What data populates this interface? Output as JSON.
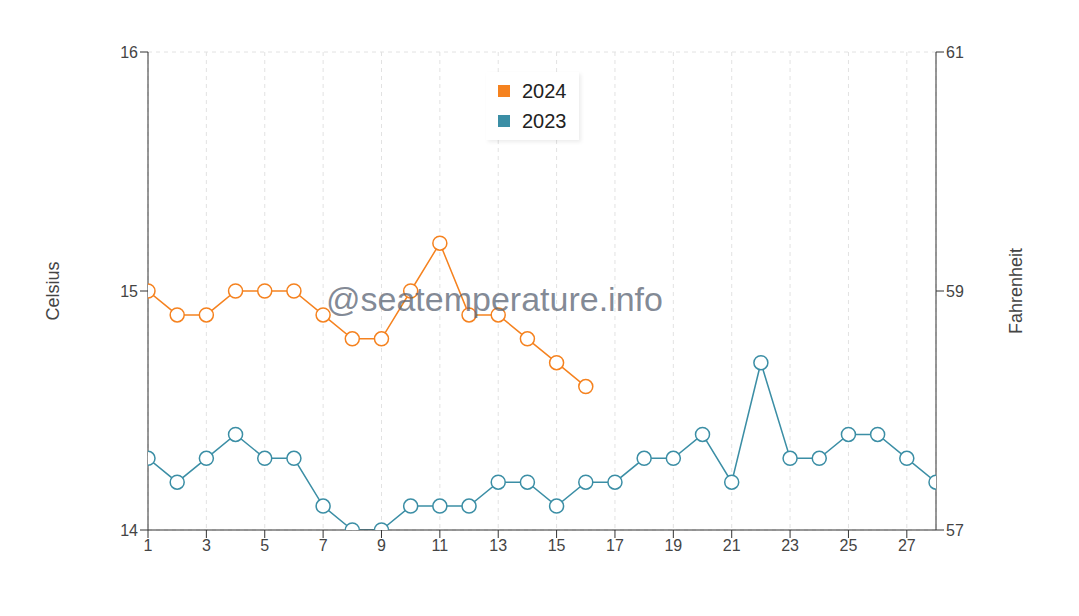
{
  "chart_data": {
    "type": "line",
    "y_label": "Celsius",
    "y2_label": "Fahrenheit",
    "annotations": [
      "@seatemperature.info"
    ],
    "x": [
      1,
      2,
      3,
      4,
      5,
      6,
      7,
      8,
      9,
      10,
      11,
      12,
      13,
      14,
      15,
      16,
      17,
      18,
      19,
      20,
      21,
      22,
      23,
      24,
      25,
      26,
      27,
      28
    ],
    "series": [
      {
        "name": "2024",
        "color": "#f5821f",
        "marker": "circle",
        "values": [
          15.0,
          14.9,
          14.9,
          15.0,
          15.0,
          15.0,
          14.9,
          14.8,
          14.8,
          15.0,
          15.2,
          14.9,
          14.9,
          14.8,
          14.7,
          14.6,
          null,
          null,
          null,
          null,
          null,
          null,
          null,
          null,
          null,
          null,
          null,
          null
        ]
      },
      {
        "name": "2023",
        "color": "#3b8ea5",
        "marker": "circle",
        "values": [
          14.3,
          14.2,
          14.3,
          14.4,
          14.3,
          14.3,
          14.1,
          14.0,
          14.0,
          14.1,
          14.1,
          14.1,
          14.2,
          14.2,
          14.1,
          14.2,
          14.2,
          14.3,
          14.3,
          14.4,
          14.2,
          14.7,
          14.3,
          14.3,
          14.4,
          14.4,
          14.3,
          14.2
        ]
      }
    ],
    "xlim": [
      1,
      28
    ],
    "xticks": [
      1,
      3,
      5,
      7,
      9,
      11,
      13,
      15,
      17,
      19,
      21,
      23,
      25,
      27
    ],
    "ylim": [
      14,
      16
    ],
    "yticks": [
      14,
      15,
      16
    ],
    "y2lim": [
      57,
      61
    ],
    "y2ticks": [
      57,
      59,
      61
    ],
    "grid": true,
    "legend": "top"
  }
}
